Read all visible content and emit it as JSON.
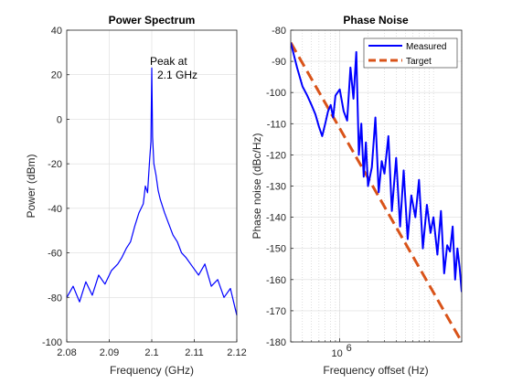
{
  "chart_data": [
    {
      "type": "line",
      "title": "Power Spectrum",
      "xlabel": "Frequency (GHz)",
      "ylabel": "Power (dBm)",
      "xlim": [
        2.08,
        2.12
      ],
      "ylim": [
        -100,
        40
      ],
      "xticks": [
        "2.08",
        "2.09",
        "2.1",
        "2.11",
        "2.12"
      ],
      "yticks": [
        "-100",
        "-80",
        "-60",
        "-40",
        "-20",
        "0",
        "20",
        "40"
      ],
      "grid": true,
      "color": "#0000ff",
      "annotation": [
        "Peak at",
        "2.1 GHz"
      ],
      "series": [
        {
          "x": [
            2.08,
            2.0815,
            2.083,
            2.0845,
            2.086,
            2.0875,
            2.089,
            2.0905,
            2.092,
            2.093,
            2.094,
            2.095,
            2.096,
            2.097,
            2.098,
            2.0985,
            2.099,
            2.0995,
            2.0998,
            2.1,
            2.1002,
            2.1005,
            2.101,
            2.1015,
            2.102,
            2.103,
            2.104,
            2.105,
            2.106,
            2.107,
            2.108,
            2.1095,
            2.111,
            2.1125,
            2.114,
            2.1155,
            2.117,
            2.1185,
            2.12
          ],
          "y": [
            -80,
            -75,
            -82,
            -73,
            -79,
            -70,
            -74,
            -68,
            -65,
            -62,
            -58,
            -55,
            -48,
            -42,
            -38,
            -30,
            -33,
            -18,
            -10,
            23,
            -8,
            -20,
            -25,
            -32,
            -36,
            -42,
            -47,
            -52,
            -55,
            -60,
            -62,
            -66,
            -70,
            -65,
            -75,
            -72,
            -80,
            -76,
            -88
          ]
        }
      ]
    },
    {
      "type": "line",
      "title": "Phase Noise",
      "xlabel": "Frequency offset (Hz)",
      "ylabel": "Phase noise (dBc/Hz)",
      "xscale": "log",
      "xlim": [
        300000,
        20000000
      ],
      "ylim": [
        -180,
        -80
      ],
      "xticks": [
        {
          "base": "10",
          "exp": "6"
        }
      ],
      "yticks": [
        "-180",
        "-170",
        "-160",
        "-150",
        "-140",
        "-130",
        "-120",
        "-110",
        "-100",
        "-90",
        "-80"
      ],
      "grid": true,
      "legend_position": "top-right",
      "series": [
        {
          "name": "Measured",
          "color": "#0000ff",
          "style": "solid",
          "x": [
            300000,
            350000,
            400000,
            450000,
            500000,
            550000,
            600000,
            650000,
            700000,
            750000,
            800000,
            850000,
            900000,
            1000000,
            1100000,
            1200000,
            1300000,
            1400000,
            1500000,
            1600000,
            1700000,
            1800000,
            1900000,
            2000000,
            2200000,
            2400000,
            2600000,
            2800000,
            3000000,
            3300000,
            3600000,
            4000000,
            4400000,
            4800000,
            5300000,
            5800000,
            6400000,
            7000000,
            7700000,
            8500000,
            9300000,
            10000000,
            11000000,
            12000000,
            13000000,
            14000000,
            15000000,
            16000000,
            17000000,
            18000000,
            19000000,
            20000000
          ],
          "y": [
            -84,
            -92,
            -98,
            -101,
            -104,
            -107,
            -111,
            -114,
            -110,
            -106,
            -104,
            -108,
            -101,
            -99,
            -106,
            -109,
            -92,
            -102,
            -87,
            -120,
            -110,
            -127,
            -116,
            -130,
            -124,
            -108,
            -132,
            -122,
            -126,
            -114,
            -138,
            -121,
            -143,
            -125,
            -147,
            -133,
            -140,
            -128,
            -150,
            -136,
            -145,
            -140,
            -152,
            -138,
            -158,
            -149,
            -151,
            -143,
            -160,
            -150,
            -156,
            -164
          ]
        },
        {
          "name": "Target",
          "color": "#d95319",
          "style": "dashed",
          "x": [
            300000,
            20000000
          ],
          "y": [
            -84,
            -180
          ]
        }
      ]
    }
  ]
}
